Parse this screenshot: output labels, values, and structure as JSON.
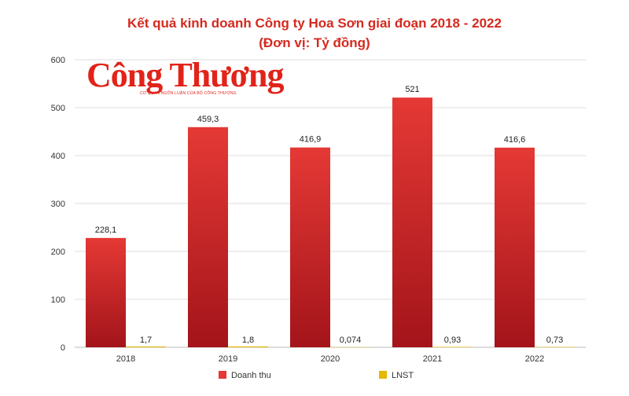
{
  "title_line1": "Kết quả kinh doanh Công ty Hoa Sơn giai đoạn 2018 - 2022",
  "title_line2": "(Đơn vị: Tỷ đồng)",
  "logo": {
    "name": "Công Thương",
    "tagline": "CƠ QUAN NGÔN LUẬN CỦA BỘ CÔNG THƯƠNG"
  },
  "colors": {
    "revenue": "#e53935",
    "revenue_dark": "#a3141a",
    "profit": "#e6b800",
    "title": "#d42a1f",
    "grid": "#dddddd"
  },
  "chart_data": {
    "type": "bar",
    "categories": [
      "2018",
      "2019",
      "2020",
      "2021",
      "2022"
    ],
    "series": [
      {
        "name": "Doanh thu",
        "values": [
          228.1,
          459.3,
          416.9,
          521,
          416.6
        ],
        "labels": [
          "228,1",
          "459,3",
          "416,9",
          "521",
          "416,6"
        ]
      },
      {
        "name": "LNST",
        "values": [
          1.7,
          1.8,
          0.074,
          0.93,
          0.73
        ],
        "labels": [
          "1,7",
          "1,8",
          "0,074",
          "0,93",
          "0,73"
        ]
      }
    ],
    "yticks": [
      "0",
      "100",
      "200",
      "300",
      "400",
      "500",
      "600"
    ],
    "ylim": [
      0,
      600
    ],
    "grid": true,
    "legend_position": "bottom"
  }
}
